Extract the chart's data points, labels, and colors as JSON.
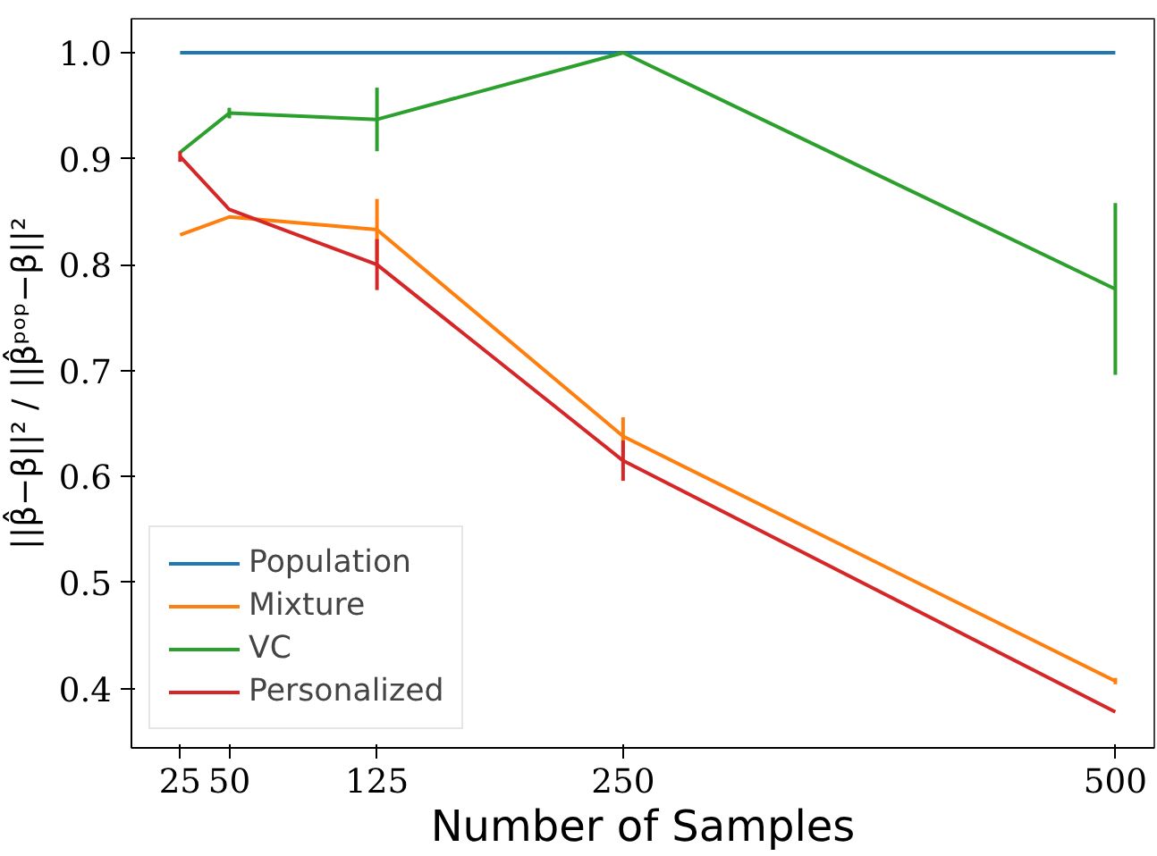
{
  "chart_data": {
    "type": "line",
    "xlabel": "Number of Samples",
    "ylabel": "||β̂−β||² / ||β̂ᵖᵒᵖ−β||²",
    "x": [
      25,
      50,
      125,
      250,
      500
    ],
    "xlim": [
      0.3,
      519.8
    ],
    "xticks": [
      25,
      50,
      125,
      250,
      500
    ],
    "ylim": [
      0.344,
      1.032
    ],
    "yticks": [
      {
        "value": 0.4,
        "label": "0.4"
      },
      {
        "value": 0.5,
        "label": "0.5"
      },
      {
        "value": 0.6,
        "label": "0.6"
      },
      {
        "value": 0.7,
        "label": "0.7"
      },
      {
        "value": 0.8,
        "label": "0.8"
      },
      {
        "value": 0.9,
        "label": "0.9"
      },
      {
        "value": 1.0,
        "label": "1.0"
      }
    ],
    "grid": false,
    "legend": "bottom left",
    "marker": "none",
    "line_style": "solid",
    "series": [
      {
        "name": "Population",
        "color": "#1f77b4",
        "values": [
          1.0,
          1.0,
          1.0,
          1.0,
          1.0
        ],
        "errors": [
          null,
          null,
          null,
          null,
          null
        ]
      },
      {
        "name": "Mixture",
        "color": "#ff7f0e",
        "values": [
          0.828,
          0.845,
          0.833,
          0.638,
          0.407
        ],
        "errors": [
          null,
          null,
          0.029,
          0.018,
          0.003
        ]
      },
      {
        "name": "VC",
        "color": "#2ca02c",
        "values": [
          0.906,
          0.943,
          0.937,
          1.0,
          0.777
        ],
        "errors": [
          null,
          0.005,
          0.03,
          null,
          0.081
        ]
      },
      {
        "name": "Personalized",
        "color": "#d62728",
        "values": [
          0.902,
          0.852,
          0.8,
          0.615,
          0.378
        ],
        "errors": [
          0.005,
          null,
          0.024,
          0.019,
          null
        ]
      }
    ]
  }
}
